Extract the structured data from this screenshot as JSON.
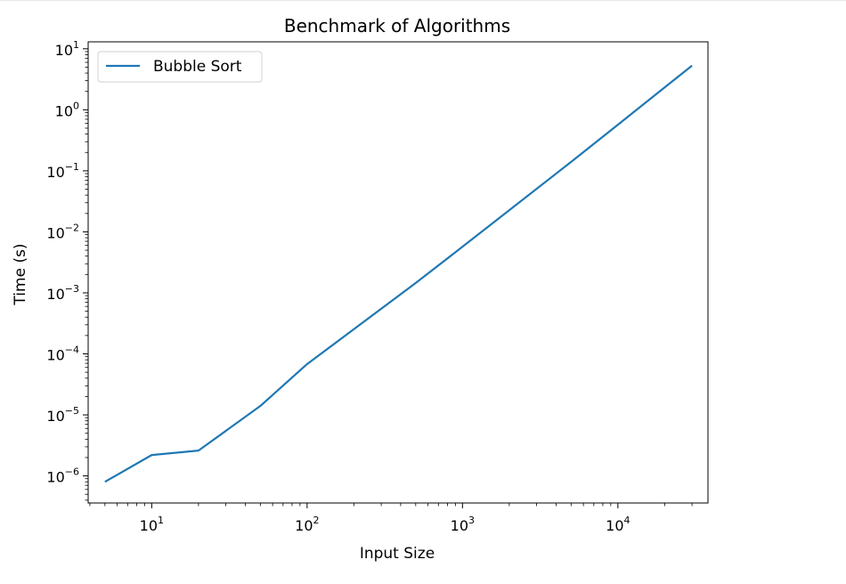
{
  "chart_data": {
    "type": "line",
    "title": "Benchmark of Algorithms",
    "xlabel": "Input Size",
    "ylabel": "Time (s)",
    "xscale": "log",
    "yscale": "log",
    "xlim": [
      3.9,
      38000
    ],
    "ylim": [
      3.6e-07,
      13
    ],
    "x_ticks": [
      {
        "base": "10",
        "exp": "1",
        "value": 10
      },
      {
        "base": "10",
        "exp": "2",
        "value": 100
      },
      {
        "base": "10",
        "exp": "3",
        "value": 1000
      },
      {
        "base": "10",
        "exp": "4",
        "value": 10000
      }
    ],
    "y_ticks": [
      {
        "base": "10",
        "exp": "1",
        "value": 10
      },
      {
        "base": "10",
        "exp": "0",
        "value": 1
      },
      {
        "base": "10",
        "exp": "−1",
        "value": 0.1
      },
      {
        "base": "10",
        "exp": "−2",
        "value": 0.01
      },
      {
        "base": "10",
        "exp": "−3",
        "value": 0.001
      },
      {
        "base": "10",
        "exp": "−4",
        "value": 0.0001
      },
      {
        "base": "10",
        "exp": "−5",
        "value": 1e-05
      },
      {
        "base": "10",
        "exp": "−6",
        "value": 1e-06
      }
    ],
    "grid": false,
    "legend_position": "upper-left",
    "series": [
      {
        "name": "Bubble Sort",
        "color": "#1f77b4",
        "x": [
          5,
          10,
          20,
          50,
          100,
          500,
          1000,
          5000,
          10000,
          30000
        ],
        "y": [
          8e-07,
          2.2e-06,
          2.6e-06,
          1.4e-05,
          6.8e-05,
          0.00145,
          0.0057,
          0.14,
          0.57,
          5.3
        ]
      }
    ]
  }
}
